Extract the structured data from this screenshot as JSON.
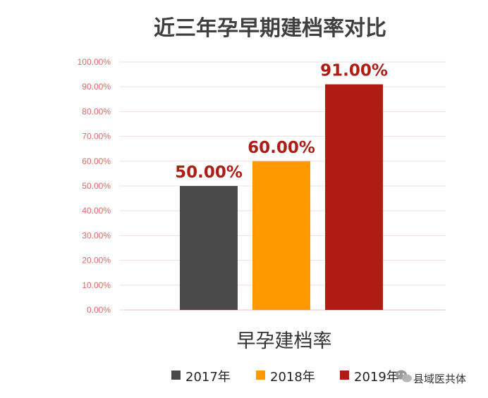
{
  "chart_data": {
    "type": "bar",
    "title": "近三年孕早期建档率对比",
    "categories": [
      "2017年",
      "2018年",
      "2019年"
    ],
    "values": [
      50.0,
      60.0,
      91.0
    ],
    "data_labels": [
      "50.00%",
      "60.00%",
      "91.00%"
    ],
    "colors": [
      "#4a4a4a",
      "#ff9900",
      "#b01c14"
    ],
    "xlabel": "早孕建档率",
    "ylabel": "",
    "ylim": [
      0,
      100
    ],
    "yticks": [
      "0.00%",
      "10.00%",
      "20.00%",
      "30.00%",
      "40.00%",
      "50.00%",
      "60.00%",
      "70.00%",
      "80.00%",
      "90.00%",
      "100.00%"
    ],
    "grid": true,
    "legend": {
      "position": "bottom",
      "entries": [
        "2017年",
        "2018年",
        "2019年"
      ]
    }
  },
  "watermark": {
    "text": "县域医共体",
    "icon": "wechat-icon"
  }
}
